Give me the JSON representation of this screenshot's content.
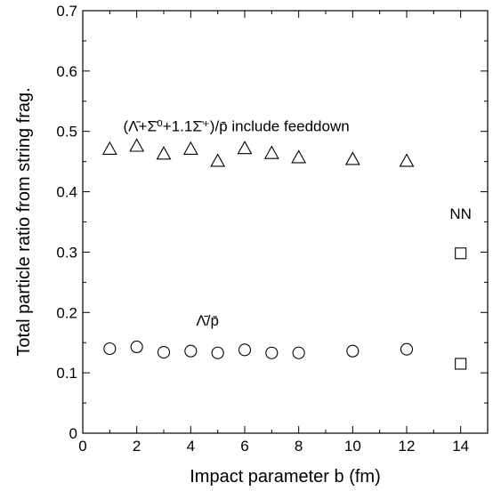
{
  "chart_data": {
    "type": "scatter",
    "xlabel": "Impact parameter b (fm)",
    "ylabel": "Total particle ratio from string frag.",
    "xlim": [
      0,
      15
    ],
    "ylim": [
      0,
      0.7
    ],
    "xticks": [
      "0",
      "2",
      "4",
      "6",
      "8",
      "10",
      "12",
      "14"
    ],
    "yticks": [
      "0",
      "0.1",
      "0.2",
      "0.3",
      "0.4",
      "0.5",
      "0.6",
      "0.7"
    ],
    "grid": false,
    "series": [
      {
        "marker": "triangle",
        "x": [
          1,
          2,
          3,
          4,
          5,
          6,
          7,
          8,
          10,
          12
        ],
        "y": [
          0.471,
          0.476,
          0.463,
          0.471,
          0.451,
          0.472,
          0.464,
          0.457,
          0.454,
          0.451
        ]
      },
      {
        "marker": "circle",
        "x": [
          1,
          2,
          3,
          4,
          5,
          6,
          7,
          8,
          10,
          12
        ],
        "y": [
          0.14,
          0.143,
          0.134,
          0.136,
          0.133,
          0.138,
          0.133,
          0.133,
          0.136,
          0.139
        ]
      },
      {
        "marker": "square",
        "x": [
          14,
          14
        ],
        "y": [
          0.298,
          0.115
        ]
      }
    ],
    "annotations": [
      {
        "text": "(Λ̄+Σ̄⁰+1.1Σ̄⁺)/p̄ include feeddown",
        "x": 1.5,
        "y": 0.5
      },
      {
        "text": "Λ̄/p̄",
        "x": 4.2,
        "y": 0.178
      },
      {
        "text": "NN",
        "x": 14,
        "y": 0.355
      }
    ]
  }
}
